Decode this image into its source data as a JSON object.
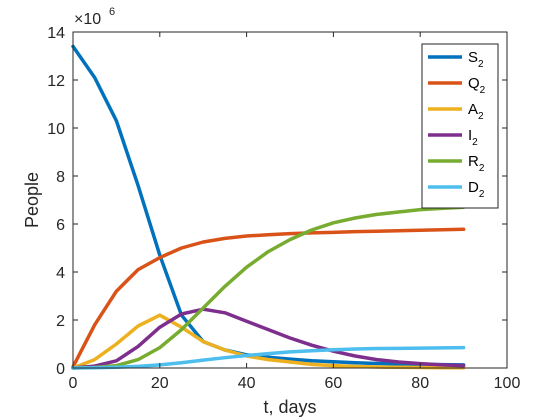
{
  "chart_data": {
    "type": "line",
    "xlabel": "t, days",
    "ylabel": "People",
    "exponent_label": "×10",
    "exponent_power": "6",
    "xlim": [
      0,
      100
    ],
    "ylim": [
      0,
      14
    ],
    "xticks": [
      0,
      20,
      40,
      60,
      80,
      100
    ],
    "xtick_labels": [
      "0",
      "20",
      "40",
      "60",
      "80",
      "100"
    ],
    "yticks": [
      0,
      2,
      4,
      6,
      8,
      10,
      12,
      14
    ],
    "ytick_labels": [
      "0",
      "2",
      "4",
      "6",
      "8",
      "10",
      "12",
      "14"
    ],
    "grid": false,
    "legend_position": "top-right",
    "x": [
      0,
      5,
      10,
      15,
      20,
      25,
      30,
      35,
      40,
      45,
      50,
      55,
      60,
      65,
      70,
      75,
      80,
      85,
      90
    ],
    "series": [
      {
        "name": "S",
        "subscript": "2",
        "color": "#0072BD",
        "values": [
          13.4,
          12.1,
          10.3,
          7.6,
          4.7,
          2.2,
          1.1,
          0.75,
          0.55,
          0.45,
          0.37,
          0.3,
          0.26,
          0.22,
          0.19,
          0.17,
          0.15,
          0.14,
          0.13
        ]
      },
      {
        "name": "Q",
        "subscript": "2",
        "color": "#D95319",
        "values": [
          0.05,
          1.8,
          3.2,
          4.1,
          4.6,
          5.0,
          5.25,
          5.4,
          5.5,
          5.55,
          5.6,
          5.63,
          5.65,
          5.68,
          5.7,
          5.72,
          5.74,
          5.76,
          5.78
        ]
      },
      {
        "name": "A",
        "subscript": "2",
        "color": "#EDB120",
        "values": [
          0.0,
          0.35,
          1.0,
          1.75,
          2.2,
          1.7,
          1.1,
          0.75,
          0.5,
          0.35,
          0.25,
          0.15,
          0.1,
          0.06,
          0.04,
          0.03,
          0.02,
          0.01,
          0.01
        ]
      },
      {
        "name": "I",
        "subscript": "2",
        "color": "#7E2F8E",
        "values": [
          0.0,
          0.08,
          0.3,
          0.9,
          1.7,
          2.25,
          2.45,
          2.3,
          1.95,
          1.6,
          1.25,
          0.95,
          0.7,
          0.5,
          0.35,
          0.25,
          0.18,
          0.13,
          0.1
        ]
      },
      {
        "name": "R",
        "subscript": "2",
        "color": "#77AC30",
        "values": [
          0.0,
          0.02,
          0.1,
          0.35,
          0.85,
          1.6,
          2.5,
          3.4,
          4.2,
          4.85,
          5.35,
          5.75,
          6.05,
          6.25,
          6.4,
          6.5,
          6.6,
          6.65,
          6.7
        ]
      },
      {
        "name": "D",
        "subscript": "2",
        "color": "#4DBEEE",
        "values": [
          0.0,
          0.01,
          0.03,
          0.07,
          0.13,
          0.22,
          0.33,
          0.43,
          0.52,
          0.6,
          0.67,
          0.72,
          0.76,
          0.79,
          0.81,
          0.82,
          0.83,
          0.84,
          0.85
        ]
      }
    ]
  }
}
